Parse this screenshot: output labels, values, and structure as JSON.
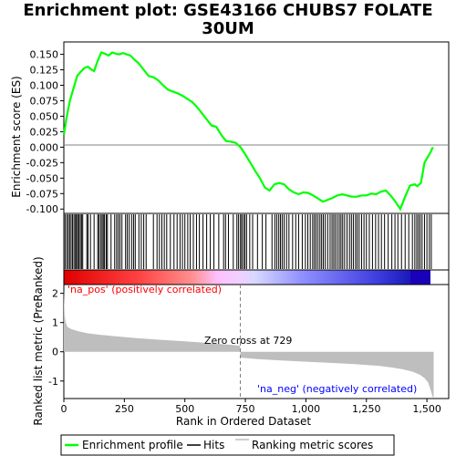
{
  "title": "Enrichment plot: GSE43166 CHUBS7 FOLATE\n30UM",
  "colors": {
    "es_line": "#00ff00",
    "hits": "#000000",
    "ranking_fill": "#bebebe",
    "pos_annotation": "#ff0000",
    "neg_annotation": "#0000ff",
    "panel_bg": "#ebebeb",
    "zero_dash": "#808080"
  },
  "legend": {
    "enrichment_profile": "Enrichment profile",
    "hits": "Hits",
    "ranking_metric_scores": "Ranking metric scores"
  },
  "annotations": {
    "na_pos": "'na_pos' (positively correlated)",
    "na_neg": "'na_neg' (negatively correlated)",
    "zero_cross": "Zero cross at 729"
  },
  "chart_data": [
    {
      "type": "line",
      "name": "enrichment-profile",
      "ylabel": "Enrichment score (ES)",
      "ylim": [
        -0.107,
        0.17
      ],
      "xlim": [
        0,
        1590
      ],
      "yticks": [
        0.15,
        0.125,
        0.1,
        0.075,
        0.05,
        0.025,
        0.0,
        -0.025,
        -0.05,
        -0.075,
        -0.1
      ],
      "ytick_labels": [
        "0.150",
        "0.125",
        "0.100",
        "0.075",
        "0.050",
        "0.025",
        "0.000",
        "-0.025",
        "-0.050",
        "-0.075",
        "-0.100"
      ],
      "x": [
        0,
        10,
        25,
        40,
        55,
        70,
        85,
        100,
        115,
        125,
        140,
        155,
        170,
        185,
        200,
        215,
        230,
        245,
        260,
        275,
        290,
        310,
        330,
        350,
        370,
        390,
        410,
        430,
        450,
        470,
        490,
        510,
        530,
        550,
        570,
        590,
        610,
        630,
        650,
        670,
        690,
        710,
        730,
        750,
        770,
        790,
        810,
        830,
        850,
        870,
        890,
        910,
        930,
        950,
        970,
        990,
        1010,
        1030,
        1050,
        1070,
        1090,
        1110,
        1130,
        1150,
        1170,
        1190,
        1210,
        1230,
        1250,
        1270,
        1290,
        1310,
        1330,
        1350,
        1370,
        1390,
        1410,
        1430,
        1450,
        1460,
        1475,
        1490,
        1505,
        1515,
        1525
      ],
      "y": [
        0.02,
        0.045,
        0.075,
        0.095,
        0.115,
        0.122,
        0.128,
        0.13,
        0.125,
        0.123,
        0.14,
        0.153,
        0.151,
        0.148,
        0.153,
        0.151,
        0.15,
        0.152,
        0.15,
        0.148,
        0.142,
        0.135,
        0.125,
        0.115,
        0.113,
        0.108,
        0.1,
        0.093,
        0.09,
        0.087,
        0.083,
        0.078,
        0.073,
        0.065,
        0.055,
        0.045,
        0.035,
        0.033,
        0.02,
        0.01,
        0.009,
        0.007,
        0.0,
        -0.012,
        -0.025,
        -0.038,
        -0.05,
        -0.065,
        -0.07,
        -0.06,
        -0.058,
        -0.06,
        -0.068,
        -0.073,
        -0.076,
        -0.073,
        -0.074,
        -0.078,
        -0.083,
        -0.088,
        -0.085,
        -0.082,
        -0.078,
        -0.076,
        -0.078,
        -0.08,
        -0.08,
        -0.078,
        -0.078,
        -0.075,
        -0.076,
        -0.072,
        -0.07,
        -0.078,
        -0.088,
        -0.1,
        -0.08,
        -0.062,
        -0.06,
        -0.063,
        -0.058,
        -0.025,
        -0.015,
        -0.008,
        0.0
      ]
    },
    {
      "type": "line",
      "name": "ranked-list-metric",
      "xlabel": "Rank in Ordered Dataset",
      "ylabel": "Ranked list metric (PreRanked)",
      "ylim": [
        -1.6,
        2.3
      ],
      "xlim": [
        0,
        1590
      ],
      "yticks": [
        2,
        1,
        0,
        -1
      ],
      "ytick_labels": [
        "2",
        "1",
        "0",
        "-1"
      ],
      "xticks": [
        0,
        250,
        500,
        750,
        1000,
        1250,
        1500
      ],
      "xtick_labels": [
        "0",
        "250",
        "500",
        "750",
        "1,000",
        "1,250",
        "1,500"
      ],
      "zero_cross": 729,
      "x": [
        0,
        3,
        8,
        15,
        30,
        60,
        100,
        150,
        200,
        300,
        400,
        500,
        600,
        700,
        728,
        729,
        730,
        800,
        900,
        1000,
        1100,
        1200,
        1300,
        1350,
        1400,
        1440,
        1470,
        1490,
        1505,
        1515,
        1522,
        1528
      ],
      "y": [
        2.1,
        1.3,
        1.0,
        0.85,
        0.78,
        0.7,
        0.63,
        0.58,
        0.54,
        0.47,
        0.41,
        0.36,
        0.3,
        0.23,
        0.2,
        0.0,
        -0.2,
        -0.25,
        -0.3,
        -0.34,
        -0.38,
        -0.42,
        -0.48,
        -0.53,
        -0.6,
        -0.68,
        -0.78,
        -0.9,
        -1.05,
        -1.3,
        -1.5,
        -1.6
      ]
    },
    {
      "type": "barcode",
      "name": "hits",
      "positions": [
        5,
        12,
        18,
        24,
        30,
        36,
        42,
        48,
        52,
        57,
        62,
        68,
        73,
        78,
        95,
        100,
        110,
        125,
        140,
        145,
        152,
        158,
        163,
        168,
        175,
        180,
        195,
        210,
        218,
        225,
        232,
        240,
        255,
        262,
        270,
        280,
        288,
        295,
        310,
        320,
        330,
        340,
        370,
        385,
        395,
        405,
        415,
        425,
        440,
        455,
        468,
        480,
        490,
        500,
        512,
        522,
        535,
        548,
        560,
        575,
        590,
        605,
        620,
        640,
        660,
        668,
        680,
        700,
        715,
        722,
        730,
        735,
        742,
        748,
        755,
        768,
        780,
        800,
        820,
        835,
        860,
        872,
        880,
        888,
        895,
        902,
        910,
        920,
        930,
        945,
        958,
        970,
        985,
        998,
        1008,
        1018,
        1028,
        1035,
        1042,
        1050,
        1058,
        1065,
        1072,
        1080,
        1090,
        1100,
        1108,
        1115,
        1122,
        1130,
        1138,
        1145,
        1152,
        1160,
        1170,
        1180,
        1188,
        1196,
        1205,
        1212,
        1220,
        1230,
        1240,
        1250,
        1262,
        1275,
        1288,
        1300,
        1312,
        1325,
        1340,
        1355,
        1368,
        1380,
        1395,
        1410,
        1425,
        1440,
        1450,
        1458,
        1465,
        1472,
        1480,
        1490,
        1500,
        1510,
        1518
      ]
    }
  ]
}
